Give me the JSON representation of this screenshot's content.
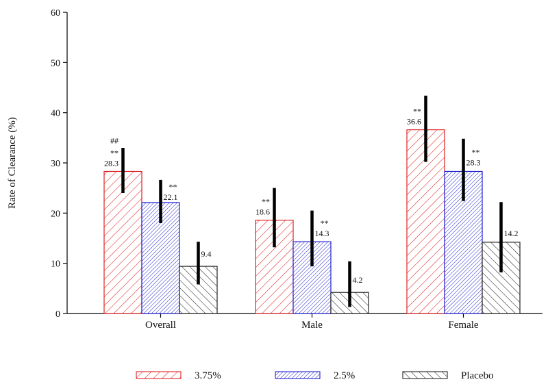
{
  "chart_data": {
    "type": "bar",
    "ylabel": "Rate of Clearance (%)",
    "ylim": [
      0,
      60
    ],
    "yticks": [
      0,
      10,
      20,
      30,
      40,
      50,
      60
    ],
    "categories": [
      "Overall",
      "Male",
      "Female"
    ],
    "grid": false,
    "legend_position": "bottom",
    "series": [
      {
        "name": "3.75%",
        "color": "#e02020",
        "hatch": "diagonal-down",
        "values": [
          28.3,
          18.6,
          36.6
        ],
        "value_labels": [
          "28.3",
          "18.6",
          "36.6"
        ],
        "error_low": [
          24.0,
          13.2,
          30.2
        ],
        "error_high": [
          33.0,
          25.0,
          43.4
        ],
        "significance": [
          "**",
          "**",
          "**"
        ],
        "significance_extra": [
          "##",
          "",
          ""
        ]
      },
      {
        "name": "2.5%",
        "color": "#2020d0",
        "hatch": "diagonal-down-dense",
        "values": [
          22.1,
          14.3,
          28.3
        ],
        "value_labels": [
          "22.1",
          "14.3",
          "28.3"
        ],
        "error_low": [
          18.0,
          9.4,
          22.4
        ],
        "error_high": [
          26.6,
          20.5,
          34.8
        ],
        "significance": [
          "**",
          "**",
          "**"
        ],
        "significance_extra": [
          "",
          "",
          ""
        ]
      },
      {
        "name": "Placebo",
        "color": "#222222",
        "hatch": "diagonal-up",
        "values": [
          9.4,
          4.2,
          14.2
        ],
        "value_labels": [
          "9.4",
          "4.2",
          "14.2"
        ],
        "error_low": [
          5.8,
          1.3,
          8.2
        ],
        "error_high": [
          14.3,
          10.4,
          22.2
        ],
        "significance": [
          "",
          "",
          ""
        ],
        "significance_extra": [
          "",
          "",
          ""
        ]
      }
    ]
  }
}
